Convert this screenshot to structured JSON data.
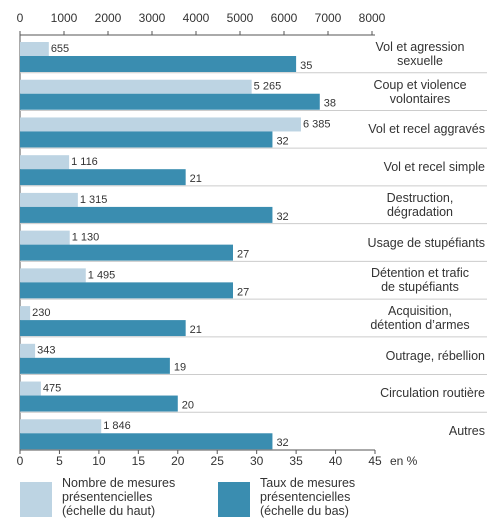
{
  "chart_data": {
    "type": "bar",
    "categories": [
      "Vol et agression\nsexuelle",
      "Coup et violence\nvolontaires",
      "Vol et recel aggravés",
      "Vol et recel simple",
      "Destruction,\ndégradation",
      "Usage de stupéfiants",
      "Détention et trafic\nde stupéfiants",
      "Acquisition,\ndétention d’armes",
      "Outrage, rébellion",
      "Circulation routière",
      "Autres"
    ],
    "series": [
      {
        "name": "Nombre de mesures\nprésentencielles\n(échelle du haut)",
        "color": "#bdd4e3",
        "axis": "x2",
        "values": [
          655,
          5265,
          6385,
          1116,
          1315,
          1130,
          1495,
          230,
          343,
          475,
          1846
        ],
        "value_labels": [
          "655",
          "5 265",
          "6 385",
          "1 116",
          "1 315",
          "1 130",
          "1 495",
          "230",
          "343",
          "475",
          "1 846"
        ]
      },
      {
        "name": "Taux de mesures\nprésentencielles\n(échelle du bas)",
        "color": "#3a8db0",
        "values": [
          35,
          38,
          32,
          21,
          32,
          27,
          27,
          21,
          19,
          20,
          32
        ]
      }
    ],
    "x2lim": [
      0,
      8000
    ],
    "x2ticks": [
      0,
      1000,
      2000,
      3000,
      4000,
      5000,
      6000,
      7000,
      8000
    ],
    "xlim": [
      0,
      45
    ],
    "xticks": [
      0,
      5,
      10,
      15,
      20,
      25,
      30,
      35,
      40,
      45
    ],
    "xlabel": "en %"
  }
}
